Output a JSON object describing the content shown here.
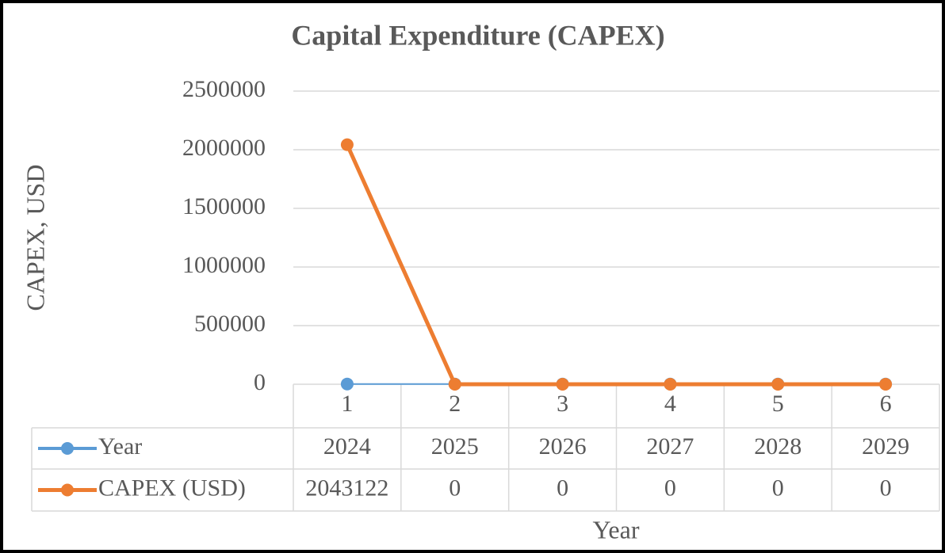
{
  "chart_data": {
    "type": "line",
    "title": "Capital Expenditure (CAPEX)",
    "x_label": "Year",
    "y_label": "CAPEX, USD",
    "categories": [
      "1",
      "2",
      "3",
      "4",
      "5",
      "6"
    ],
    "series": [
      {
        "name": "Year",
        "color": "#5b9bd5",
        "values": [
          2024,
          2025,
          2026,
          2027,
          2028,
          2029
        ]
      },
      {
        "name": "CAPEX (USD)",
        "color": "#ed7d31",
        "values": [
          2043122,
          0,
          0,
          0,
          0,
          0
        ]
      }
    ],
    "ylim": [
      0,
      2500000
    ],
    "yticks": [
      0,
      500000,
      1000000,
      1500000,
      2000000,
      2500000
    ],
    "grid": true,
    "data_table": true
  }
}
